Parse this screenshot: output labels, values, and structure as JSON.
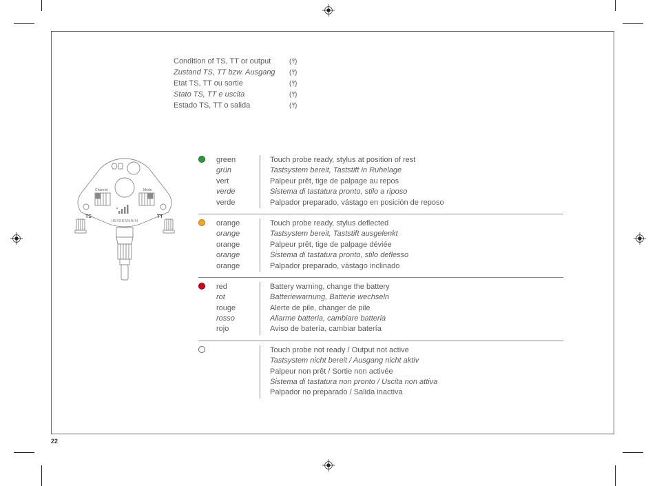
{
  "page_number": "22",
  "header": {
    "rows": [
      {
        "text": "Condition of TS, TT or output",
        "italic": false
      },
      {
        "text": "Zustand TS, TT bzw. Ausgang",
        "italic": true
      },
      {
        "text": "Etat TS, TT ou sortie",
        "italic": false
      },
      {
        "text": "Stato TS, TT e uscita",
        "italic": true
      },
      {
        "text": "Estado TS, TT o salida",
        "italic": false
      }
    ]
  },
  "legend": {
    "rows": [
      {
        "dot_fill": "#2e9a3e",
        "dot_stroke": "#176b22",
        "names": [
          {
            "text": "green",
            "italic": false
          },
          {
            "text": "grün",
            "italic": true
          },
          {
            "text": "vert",
            "italic": false
          },
          {
            "text": "verde",
            "italic": true
          },
          {
            "text": "verde",
            "italic": false
          }
        ],
        "desc": [
          {
            "text": "Touch probe ready, stylus at position of rest",
            "italic": false
          },
          {
            "text": "Tastsystem bereit, Taststift in Ruhelage",
            "italic": true
          },
          {
            "text": "Palpeur prêt, tige de palpage au repos",
            "italic": false
          },
          {
            "text": "Sistema di tastatura pronto, stilo a riposo",
            "italic": true
          },
          {
            "text": "Palpador preparado, vástago en posición de reposo",
            "italic": false
          }
        ]
      },
      {
        "dot_fill": "#f5a623",
        "dot_stroke": "#b8780e",
        "names": [
          {
            "text": "orange",
            "italic": false
          },
          {
            "text": "orange",
            "italic": true
          },
          {
            "text": "orange",
            "italic": false
          },
          {
            "text": "orange",
            "italic": true
          },
          {
            "text": "orange",
            "italic": false
          }
        ],
        "desc": [
          {
            "text": "Touch probe ready, stylus deflected",
            "italic": false
          },
          {
            "text": "Tastsystem bereit, Taststift  ausgelenkt",
            "italic": true
          },
          {
            "text": "Palpeur prêt, tige de palpage déviée",
            "italic": false
          },
          {
            "text": "Sistema di tastatura pronto, stilo deflesso",
            "italic": true
          },
          {
            "text": "Palpador preparado, vástago inclinado",
            "italic": false
          }
        ]
      },
      {
        "dot_fill": "#d0021b",
        "dot_stroke": "#8c0012",
        "names": [
          {
            "text": "red",
            "italic": false
          },
          {
            "text": "rot",
            "italic": true
          },
          {
            "text": "rouge",
            "italic": false
          },
          {
            "text": "rosso",
            "italic": true
          },
          {
            "text": "rojo",
            "italic": false
          }
        ],
        "desc": [
          {
            "text": "Battery warning, change the battery",
            "italic": false
          },
          {
            "text": "Batteriewarnung, Batterie wechseln",
            "italic": true
          },
          {
            "text": "Alerte de pile, changer de pile",
            "italic": false
          },
          {
            "text": "Allarme batteria, cambiare batteria",
            "italic": true
          },
          {
            "text": "Aviso de batería, cambiar batería",
            "italic": false
          }
        ]
      },
      {
        "dot_fill": "none",
        "dot_stroke": "#666",
        "names": [],
        "desc": [
          {
            "text": "Touch probe not ready / Output not active",
            "italic": false
          },
          {
            "text": "Tastsystem nicht bereit / Ausgang nicht aktiv",
            "italic": true
          },
          {
            "text": "Palpeur non prêt / Sortie non activée",
            "italic": false
          },
          {
            "text": "Sistema di tastatura non pronto / Uscita non attiva",
            "italic": true
          },
          {
            "text": "Palpador no preparado  / Salida inactiva",
            "italic": false
          }
        ]
      }
    ]
  },
  "device": {
    "brand": "HEIDENHAIN",
    "left_label": "TS",
    "right_label": "TT",
    "channel_label": "Channel",
    "mode_label": "Mode"
  },
  "colors": {
    "text": "#5a5a5a",
    "border": "#666",
    "diagram_stroke": "#888"
  }
}
